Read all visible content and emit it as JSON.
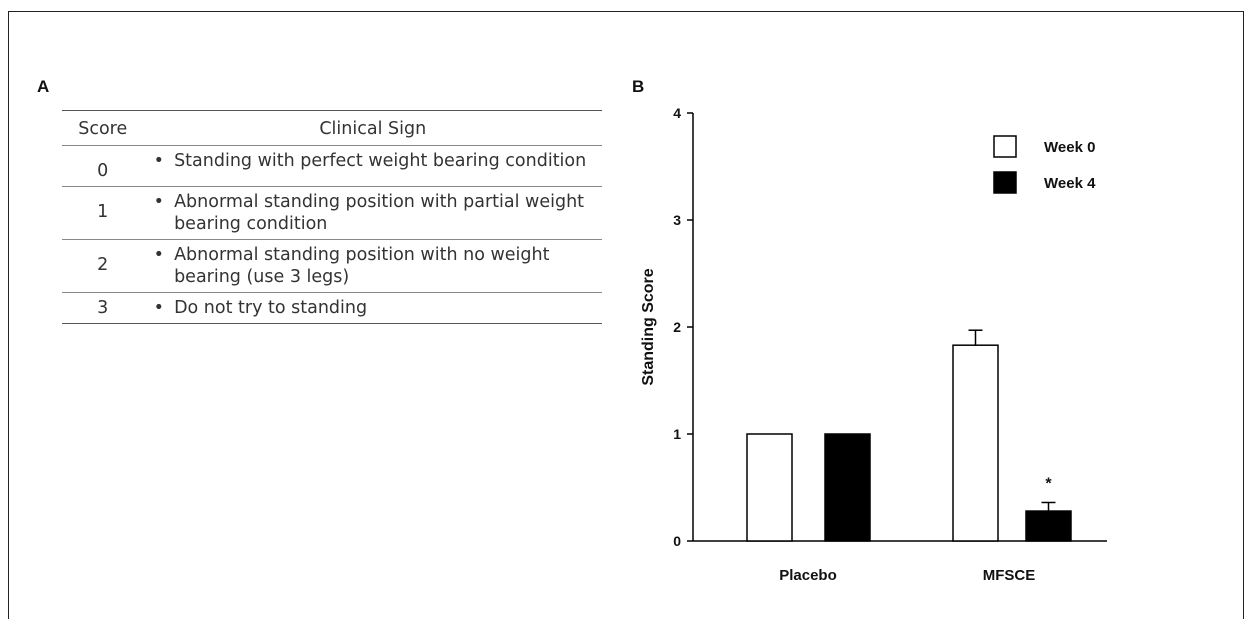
{
  "panel_a": {
    "label": "A",
    "table": {
      "headers": [
        "Score",
        "Clinical Sign"
      ],
      "rows": [
        {
          "score": "0",
          "sign": "Standing with perfect weight bearing condition"
        },
        {
          "score": "1",
          "sign": "Abnormal standing position with partial weight bearing condition"
        },
        {
          "score": "2",
          "sign": "Abnormal standing position with no weight bearing (use 3 legs)"
        },
        {
          "score": "3",
          "sign": "Do not try to standing"
        }
      ],
      "bullet": "•"
    }
  },
  "panel_b": {
    "label": "B"
  },
  "chart_data": {
    "type": "bar",
    "categories": [
      "Placebo",
      "MFSCE"
    ],
    "series": [
      {
        "name": "Week 0",
        "values": [
          1.0,
          1.83
        ],
        "errors": [
          0.0,
          0.14
        ],
        "color": "#ffffff"
      },
      {
        "name": "Week 4",
        "values": [
          1.0,
          0.28
        ],
        "errors": [
          0.0,
          0.08
        ],
        "color": "#000000"
      }
    ],
    "annotations": [
      {
        "category": "MFSCE",
        "series": "Week 4",
        "text": "*"
      }
    ],
    "xlabel": "",
    "ylabel": "Standing Score",
    "ylim": [
      0,
      4
    ],
    "yticks": [
      0,
      1,
      2,
      3,
      4
    ],
    "legend": "top-right",
    "grid": false
  }
}
